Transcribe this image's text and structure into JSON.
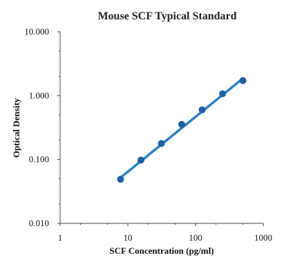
{
  "chart_data": {
    "type": "scatter",
    "title": "Mouse SCF Typical Standard",
    "xlabel": "SCF Concentration (pg/ml)",
    "ylabel": "Optical Density",
    "x_scale": "log",
    "y_scale": "log",
    "xlim": [
      1,
      1000
    ],
    "ylim": [
      0.01,
      10
    ],
    "x_ticks": [
      1,
      10,
      100,
      1000
    ],
    "x_tick_labels": [
      "1",
      "10",
      "100",
      "1000"
    ],
    "y_ticks": [
      0.01,
      0.1,
      1,
      10
    ],
    "y_tick_labels": [
      "0.010",
      "0.100",
      "1.000",
      "10.000"
    ],
    "grid": false,
    "legend": "none",
    "series": [
      {
        "x": [
          7.8,
          15.6,
          31.25,
          62.5,
          125,
          250,
          500
        ],
        "y": [
          0.049,
          0.098,
          0.178,
          0.355,
          0.6,
          1.07,
          1.72
        ]
      }
    ],
    "fit_line": {
      "x": [
        7.8,
        500
      ],
      "y": [
        0.052,
        1.86
      ]
    },
    "colors": {
      "marker": "#1f5fa3",
      "line": "#2a7fc4"
    }
  }
}
